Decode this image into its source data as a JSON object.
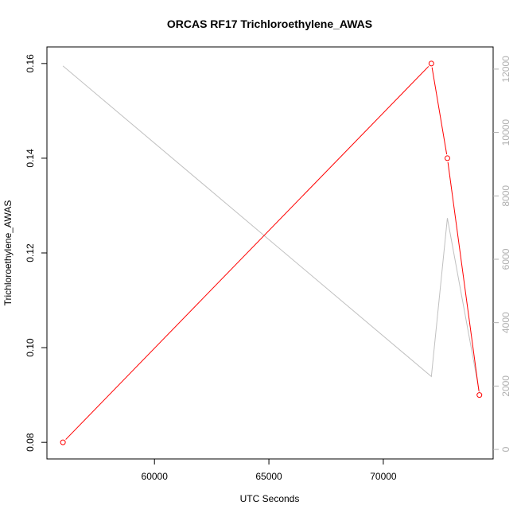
{
  "chart_data": {
    "type": "line",
    "title": "ORCAS RF17 Trichloroethylene_AWAS",
    "xlabel": "UTC Seconds",
    "ylabel": "Trichloroethylene_AWAS",
    "y2label": "",
    "xlim": [
      55300,
      74800
    ],
    "ylim": [
      0.0765,
      0.1635
    ],
    "y2lim": [
      -300,
      12700
    ],
    "x_ticks": [
      60000,
      65000,
      70000
    ],
    "y_ticks": [
      0.08,
      0.1,
      0.12,
      0.14,
      0.16
    ],
    "y2_ticks": [
      0,
      2000,
      4000,
      6000,
      8000,
      10000,
      12000
    ],
    "grid": false,
    "series": [
      {
        "axis": "left",
        "color": "#ff0000",
        "markers": "open-circle",
        "x": [
          56000,
          72100,
          72800,
          74200
        ],
        "y": [
          0.08,
          0.16,
          0.14,
          0.09
        ]
      },
      {
        "axis": "right",
        "color": "#c0c0c0",
        "markers": "none",
        "x": [
          56000,
          72100,
          72800,
          74200
        ],
        "y": [
          12100,
          2300,
          7300,
          1800
        ]
      }
    ]
  }
}
